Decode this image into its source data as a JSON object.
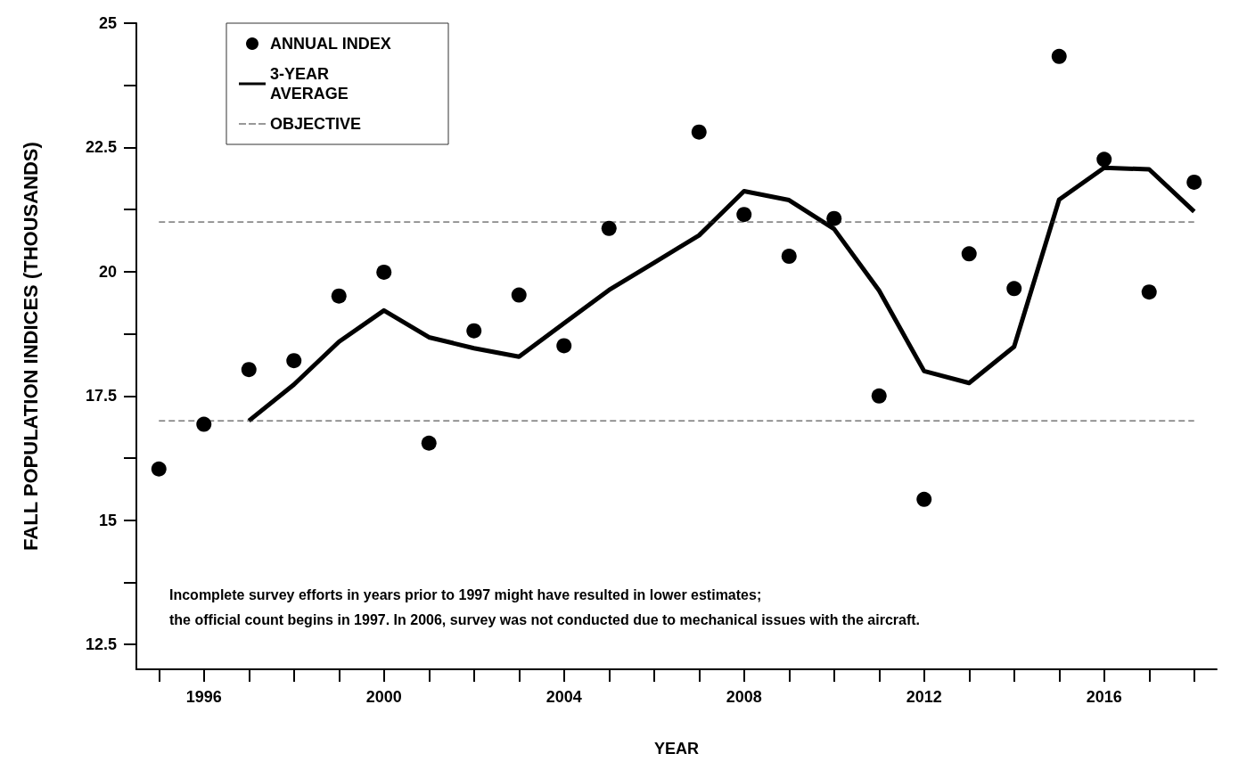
{
  "chart_data": {
    "type": "scatter",
    "xlabel": "YEAR",
    "ylabel": "FALL POPULATION INDICES (THOUSANDS)",
    "xlim": [
      1994.5,
      2018.5
    ],
    "xticks": [
      {
        "value": 1995,
        "label": null
      },
      1996,
      {
        "value": 1997,
        "label": null
      },
      {
        "value": 1998,
        "label": null
      },
      {
        "value": 1999,
        "label": null
      },
      2000,
      {
        "value": 2001,
        "label": null
      },
      {
        "value": 2002,
        "label": null
      },
      {
        "value": 2003,
        "label": null
      },
      2004,
      {
        "value": 2005,
        "label": null
      },
      {
        "value": 2006,
        "label": null
      },
      {
        "value": 2007,
        "label": null
      },
      2008,
      {
        "value": 2009,
        "label": null
      },
      {
        "value": 2010,
        "label": null
      },
      {
        "value": 2011,
        "label": null
      },
      2012,
      {
        "value": 2013,
        "label": null
      },
      {
        "value": 2014,
        "label": null
      },
      {
        "value": 2015,
        "label": null
      },
      2016,
      {
        "value": 2017,
        "label": null
      },
      {
        "value": 2018,
        "label": null
      }
    ],
    "ylim": [
      12,
      25
    ],
    "yticks": [
      12.5,
      {
        "value": 13.75,
        "label": null
      },
      15,
      {
        "value": 16.25,
        "label": null
      },
      17.5,
      {
        "value": 18.75,
        "label": null
      },
      20,
      {
        "value": 21.25,
        "label": null
      },
      22.5,
      {
        "value": 23.75,
        "label": null
      },
      25
    ],
    "legend": "top left",
    "grid": false,
    "series": [
      {
        "name": "ANNUAL INDEX",
        "marker": "circle",
        "color": "#000000",
        "x": [
          1995,
          1996,
          1997,
          1998,
          1999,
          2000,
          2001,
          2002,
          2003,
          2004,
          2005,
          2007,
          2008,
          2009,
          2010,
          2011,
          2012,
          2013,
          2014,
          2015,
          2016,
          2017,
          2018
        ],
        "values": [
          16.03,
          16.93,
          18.03,
          18.21,
          19.51,
          19.99,
          16.55,
          18.81,
          19.53,
          18.51,
          20.87,
          22.81,
          21.15,
          20.31,
          21.07,
          17.5,
          15.42,
          20.36,
          19.66,
          24.33,
          22.26,
          19.59,
          21.8
        ]
      },
      {
        "name": "3-YEAR AVERAGE",
        "type": "line",
        "marker": "none",
        "line_style": "solid",
        "color": "#000000",
        "x": [
          1997,
          1998,
          1999,
          2000,
          2001,
          2002,
          2003,
          2004,
          2005,
          2006,
          2007,
          2008,
          2009,
          2010,
          2011,
          2012,
          2013,
          2014,
          2015,
          2016,
          2017,
          2018
        ],
        "values": [
          17.0,
          17.73,
          18.59,
          19.22,
          18.68,
          18.46,
          18.29,
          18.96,
          19.63,
          20.18,
          20.73,
          21.62,
          21.44,
          20.86,
          19.62,
          18.0,
          17.76,
          18.49,
          21.45,
          22.09,
          22.06,
          21.21
        ]
      },
      {
        "name": "OBJECTIVE",
        "type": "line",
        "marker": "none",
        "line_style": "dashed",
        "color": "#333333",
        "x": [
          1995,
          2018
        ],
        "values": [
          21,
          21
        ]
      },
      {
        "type": "line",
        "marker": "none",
        "line_style": "dashed",
        "color": "#333333",
        "x": [
          1995,
          2018
        ],
        "values": [
          17,
          17
        ]
      }
    ],
    "annotations": [
      "Incomplete survey efforts in years prior to 1997 might have resulted in lower estimates;",
      "the official count begins in 1997. In 2006, survey was not conducted due to mechanical issues with the aircraft."
    ]
  }
}
